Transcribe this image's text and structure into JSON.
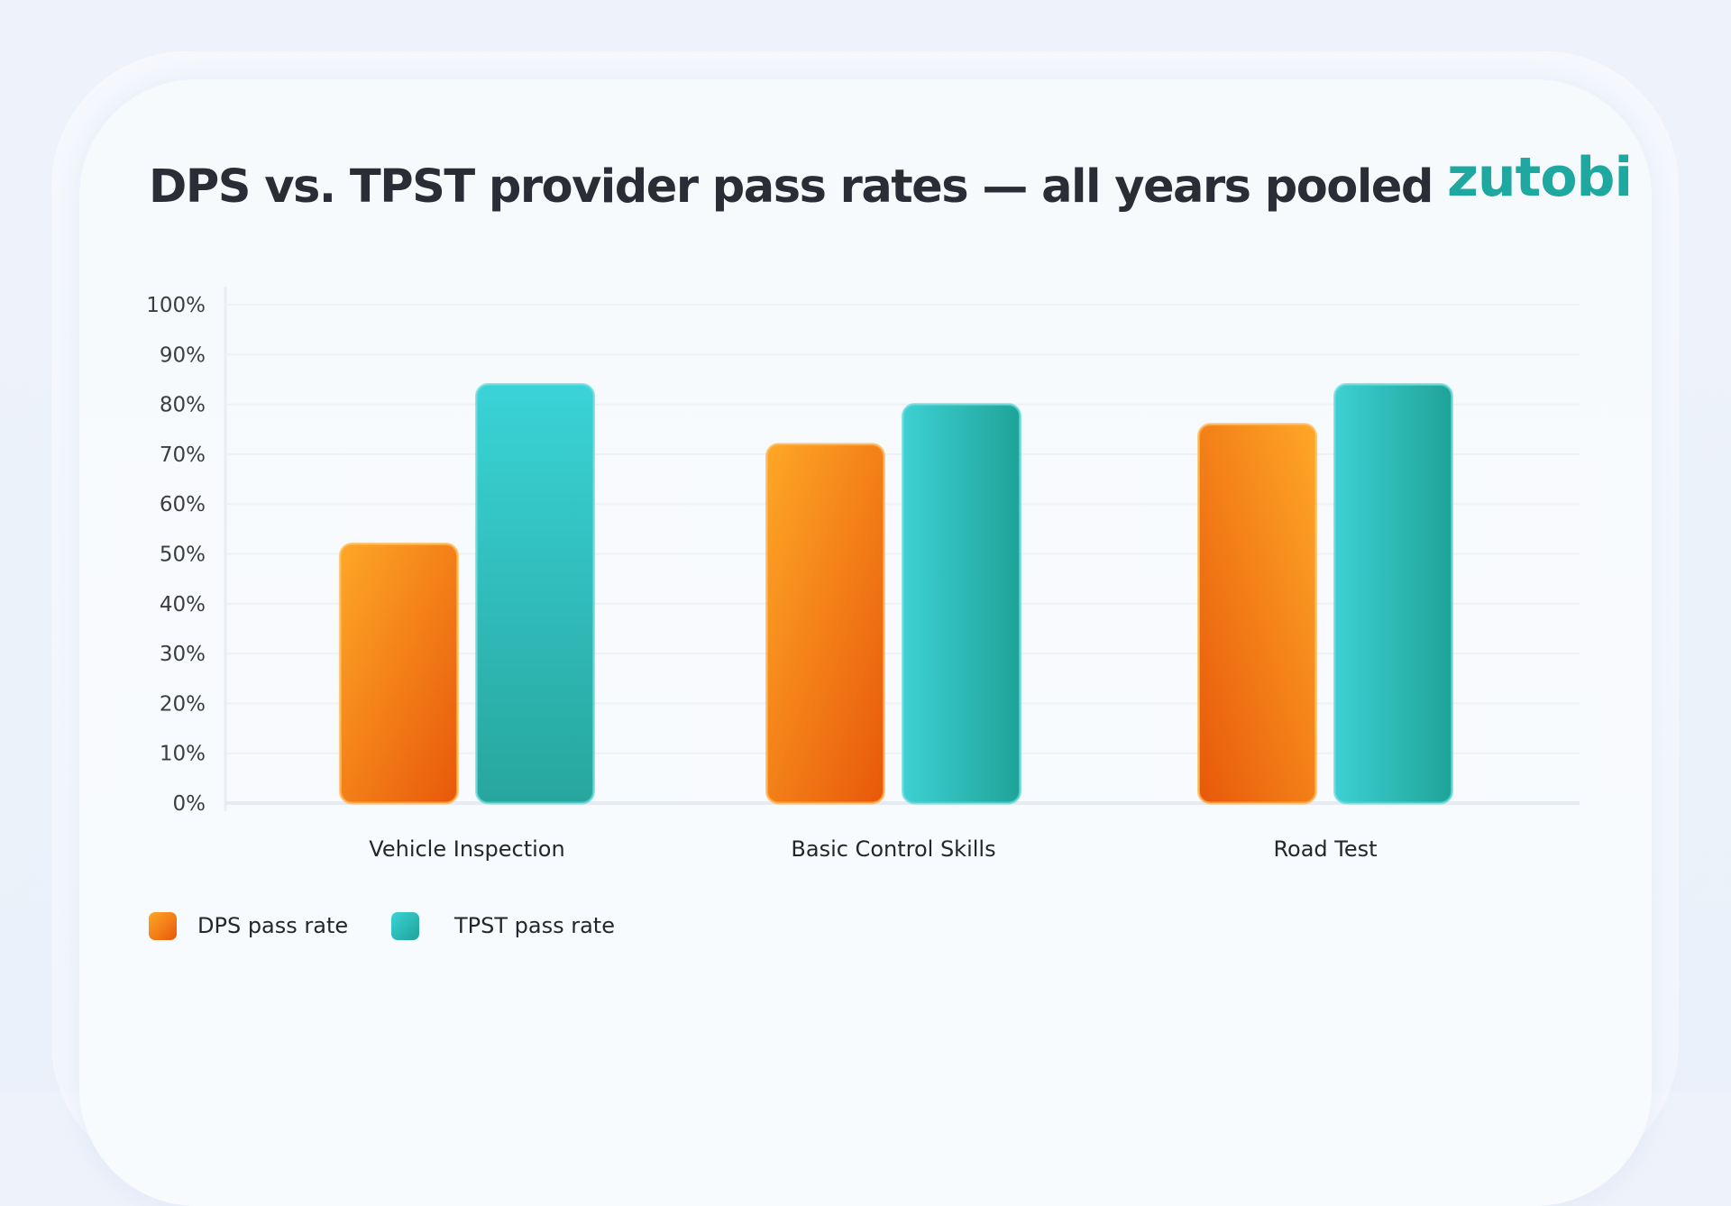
{
  "title": "DPS vs. TPST provider pass rates — all years pooled",
  "logo": "zutobi",
  "colors": {
    "dps": "#f07a14",
    "tpst": "#2bbab6"
  },
  "chart_data": {
    "type": "bar",
    "title": "DPS vs. TPST provider pass rates — all years pooled",
    "categories": [
      "Vehicle Inspection",
      "Basic Control Skills",
      "Road Test"
    ],
    "series": [
      {
        "name": "DPS pass rate",
        "values": [
          52,
          72,
          76
        ]
      },
      {
        "name": "TPST pass rate",
        "values": [
          84,
          80,
          84
        ]
      }
    ],
    "ylim": [
      0,
      100
    ],
    "yticks": [
      "0%",
      "10%",
      "20%",
      "30%",
      "40%",
      "50%",
      "60%",
      "70%",
      "80%",
      "90%",
      "100%"
    ],
    "grid": true,
    "legend": "bottom-left",
    "xlabel": "",
    "ylabel": ""
  }
}
